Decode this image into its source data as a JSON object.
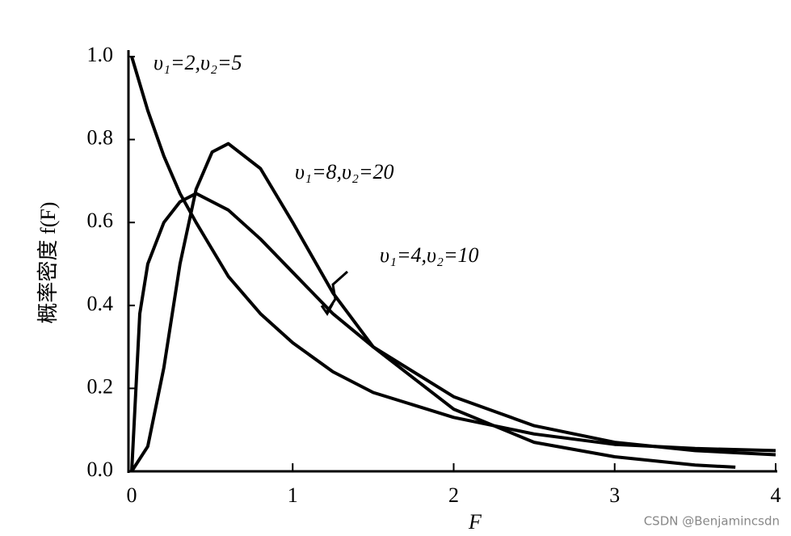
{
  "chart_data": {
    "type": "line",
    "y_label": "概率密度 f(F)",
    "x_label": "F",
    "xlim": [
      0,
      4
    ],
    "ylim": [
      0,
      1
    ],
    "xticks": [
      0,
      1,
      2,
      3,
      4
    ],
    "yticks": [
      {
        "value": 0,
        "label": "0.0"
      },
      0.2,
      0.4,
      0.6,
      0.8,
      {
        "value": 1,
        "label": "1.0"
      }
    ],
    "grid": false,
    "series": [
      {
        "name": "υ₁=2,υ₂=5",
        "color": "#000000",
        "x": [
          0,
          0.1,
          0.2,
          0.3,
          0.4,
          0.6,
          0.8,
          1.0,
          1.25,
          1.5,
          2,
          2.5,
          3,
          3.5,
          4
        ],
        "values": [
          1.0,
          0.87,
          0.76,
          0.67,
          0.6,
          0.47,
          0.38,
          0.31,
          0.24,
          0.19,
          0.13,
          0.09,
          0.065,
          0.055,
          0.05
        ]
      },
      {
        "name": "υ₁=8,υ₂=20",
        "color": "#000000",
        "x": [
          0,
          0.1,
          0.2,
          0.3,
          0.4,
          0.5,
          0.6,
          0.8,
          1.0,
          1.25,
          1.5,
          2,
          2.5,
          3,
          3.5,
          3.75
        ],
        "values": [
          0,
          0.06,
          0.25,
          0.5,
          0.68,
          0.77,
          0.79,
          0.73,
          0.6,
          0.43,
          0.3,
          0.15,
          0.07,
          0.035,
          0.015,
          0.01
        ]
      },
      {
        "name": "υ₁=4,υ₂=10",
        "color": "#000000",
        "x": [
          0,
          0.05,
          0.1,
          0.2,
          0.3,
          0.4,
          0.6,
          0.8,
          1.0,
          1.25,
          1.5,
          2,
          2.5,
          3,
          3.5,
          4
        ],
        "values": [
          0,
          0.38,
          0.5,
          0.6,
          0.65,
          0.67,
          0.63,
          0.56,
          0.48,
          0.38,
          0.3,
          0.18,
          0.11,
          0.07,
          0.05,
          0.04
        ]
      }
    ],
    "watermark": "CSDN @Benjamincsdn"
  }
}
